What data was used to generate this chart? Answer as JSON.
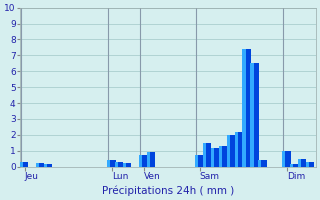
{
  "xlabel": "Précipitations 24h ( mm )",
  "ylim": [
    0,
    10
  ],
  "bar_color_dark": "#0044dd",
  "bar_color_light": "#33aaff",
  "background_color": "#d6efef",
  "grid_color": "#aacece",
  "text_color": "#2222aa",
  "tick_label_color": "#2222aa",
  "day_labels": [
    "Jeu",
    "Lun",
    "Ven",
    "Sam",
    "Dim"
  ],
  "day_tick_positions": [
    0,
    11,
    15,
    22,
    33
  ],
  "vline_positions": [
    0,
    11,
    15,
    22,
    33
  ],
  "values": [
    0.3,
    0,
    0.2,
    0.15,
    0,
    0,
    0,
    0,
    0,
    0,
    0,
    0.4,
    0.3,
    0.2,
    0,
    0.7,
    0.9,
    0,
    0,
    0,
    0,
    0,
    0.7,
    1.5,
    1.2,
    1.3,
    2.0,
    2.2,
    7.4,
    6.5,
    0.4,
    0,
    0,
    1.0,
    0.15,
    0.5,
    0.3
  ],
  "n_bars": 37
}
